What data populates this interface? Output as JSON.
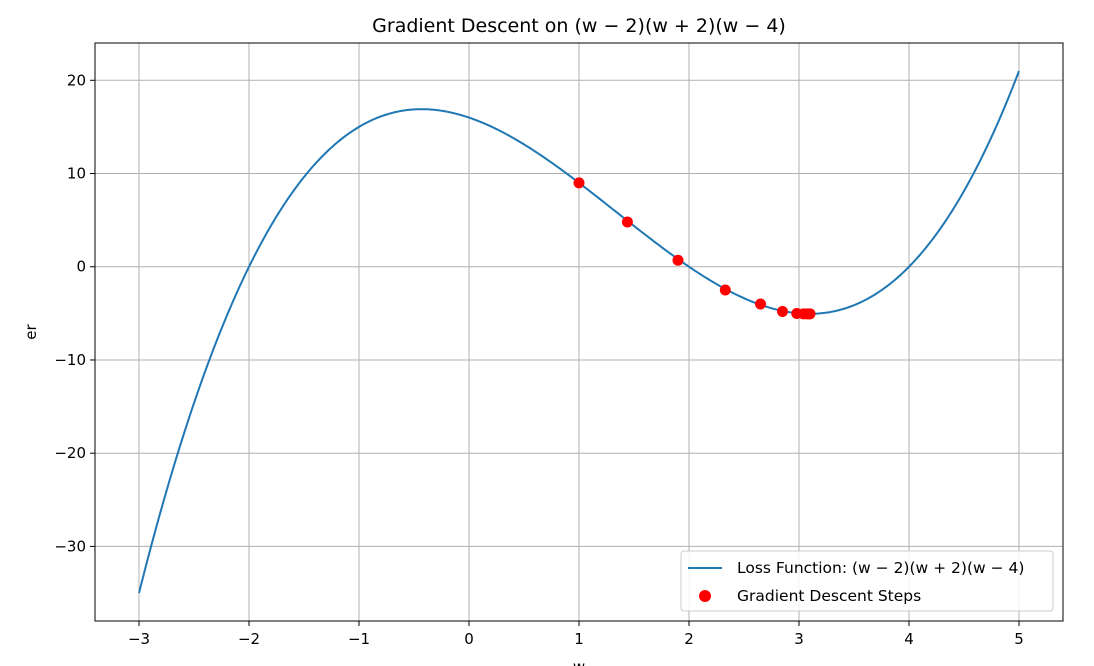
{
  "chart_data": {
    "type": "line",
    "title": "Gradient Descent on (w − 2)(w + 2)(w − 4)",
    "xlabel": "w",
    "ylabel": "er",
    "xlim": [
      -3.4,
      5.4
    ],
    "ylim": [
      -38,
      24
    ],
    "xticks": [
      -3,
      -2,
      -1,
      0,
      1,
      2,
      3,
      4,
      5
    ],
    "yticks": [
      -30,
      -20,
      -10,
      0,
      10,
      20
    ],
    "xtick_labels": [
      "−3",
      "−2",
      "−1",
      "0",
      "1",
      "2",
      "3",
      "4",
      "5"
    ],
    "ytick_labels": [
      "−30",
      "−20",
      "−10",
      "0",
      "10",
      "20"
    ],
    "grid": true,
    "legend_position": "lower-right",
    "series": [
      {
        "name": "Loss Function: (w − 2)(w + 2)(w − 4)",
        "kind": "line",
        "color": "#1f77b4",
        "function": "(w-2)(w+2)(w-4)",
        "x_range": [
          -3,
          5
        ]
      },
      {
        "name": "Gradient Descent Steps",
        "kind": "scatter",
        "color": "#ff0000",
        "x": [
          1.0,
          1.44,
          1.9,
          2.33,
          2.65,
          2.85,
          2.98,
          3.04,
          3.07,
          3.09,
          3.1
        ],
        "y": [
          9.0,
          4.8,
          0.7,
          -2.5,
          -4.0,
          -4.8,
          -5.02,
          -5.05,
          -5.05,
          -5.05,
          -5.05
        ]
      }
    ]
  }
}
